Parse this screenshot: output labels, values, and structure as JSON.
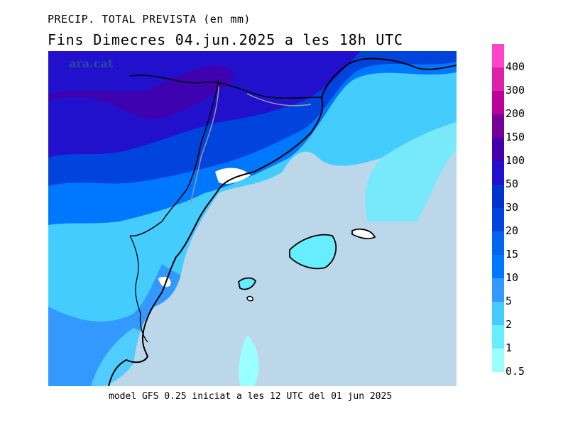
{
  "title_line1": "PRECIP. TOTAL PREVISTA (en mm)",
  "title_line2": "Fins Dimecres  04.jun.2025  a les 18h  UTC",
  "watermark": "ara.cat",
  "footer": "model GFS 0.25 iniciat a les 12 UTC del 01 jun 2025",
  "legend": {
    "levels": [
      {
        "label": "0.5",
        "color": "#99ffff"
      },
      {
        "label": "1",
        "color": "#66eeff"
      },
      {
        "label": "2",
        "color": "#44ccff"
      },
      {
        "label": "5",
        "color": "#3399ff"
      },
      {
        "label": "10",
        "color": "#0077ff"
      },
      {
        "label": "15",
        "color": "#0066ee"
      },
      {
        "label": "20",
        "color": "#0044dd"
      },
      {
        "label": "30",
        "color": "#0033cc"
      },
      {
        "label": "50",
        "color": "#2211cc"
      },
      {
        "label": "100",
        "color": "#4400aa"
      },
      {
        "label": "150",
        "color": "#770099"
      },
      {
        "label": "200",
        "color": "#bb0099"
      },
      {
        "label": "300",
        "color": "#dd22aa"
      },
      {
        "label": "400",
        "color": "#ff44cc"
      }
    ]
  },
  "colors": {
    "sea": "#bcd7ea",
    "coast": "#000000",
    "border": "#999999"
  }
}
